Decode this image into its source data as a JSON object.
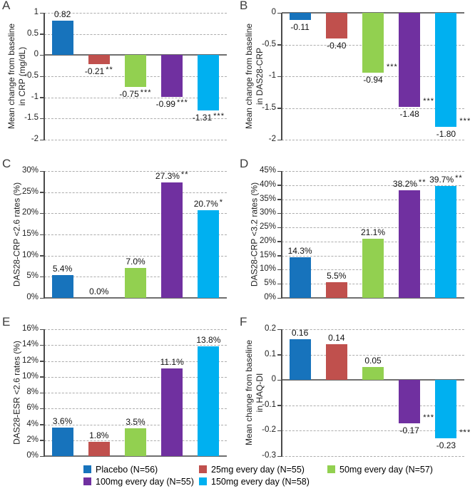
{
  "legend": {
    "items": [
      {
        "label": "Placebo (N=56)",
        "color": "#1773bc"
      },
      {
        "label": "25mg every day (N=55)",
        "color": "#c0504d"
      },
      {
        "label": "50mg every day (N=57)",
        "color": "#92d050"
      },
      {
        "label": "100mg every day (N=55)",
        "color": "#7030a0"
      },
      {
        "label": "150mg every day (N=58)",
        "color": "#00b0f0"
      }
    ],
    "rows": [
      [
        0,
        1,
        2
      ],
      [
        3,
        4
      ]
    ]
  },
  "style_colors": {
    "gridline": "#adadad",
    "axis": "#4a4a4a",
    "zero_line": "#6f6f6f",
    "background": "#ffffff"
  },
  "chart_data": [
    {
      "panel": "A",
      "type": "bar",
      "ylabel": "Mean change from baseline\nin CRP (mg/dL)",
      "ylim": [
        -2,
        1
      ],
      "ytick_values": [
        1,
        0.5,
        0,
        -0.5,
        -1,
        -1.5,
        -2
      ],
      "ytick_labels": [
        "1",
        "0.5",
        "0",
        "-0.5",
        "-1",
        "-1.5",
        "-2"
      ],
      "categories": [
        "Placebo (N=56)",
        "25mg every day (N=55)",
        "50mg every day (N=57)",
        "100mg every day (N=55)",
        "150mg every day (N=58)"
      ],
      "values": [
        0.82,
        -0.21,
        -0.75,
        -0.99,
        -1.31
      ],
      "bar_labels": [
        "0.82",
        "-0.21",
        "-0.75",
        "-0.99",
        "-1.31"
      ],
      "stars": [
        "",
        "**",
        "***",
        "***",
        "***"
      ],
      "star_style": "inline",
      "grid": true,
      "legend_position": "figure-bottom"
    },
    {
      "panel": "B",
      "type": "bar",
      "ylabel": "Mean change from baseline\nin DAS28-CRP",
      "ylim": [
        -2,
        0
      ],
      "ytick_values": [
        0,
        -0.5,
        -1,
        -1.5,
        -2
      ],
      "ytick_labels": [
        "0",
        "-0.5",
        "-1",
        "-1.5",
        "-2"
      ],
      "categories": [
        "Placebo (N=56)",
        "25mg every day (N=55)",
        "50mg every day (N=57)",
        "100mg every day (N=55)",
        "150mg every day (N=58)"
      ],
      "values": [
        -0.11,
        -0.4,
        -0.94,
        -1.48,
        -1.8
      ],
      "bar_labels": [
        "-0.11",
        "-0.40",
        "-0.94",
        "-1.48",
        "-1.80"
      ],
      "stars": [
        "",
        "",
        "***",
        "***",
        "***"
      ],
      "star_style": "beside",
      "grid": true,
      "legend_position": "figure-bottom"
    },
    {
      "panel": "C",
      "type": "bar",
      "ylabel": "DAS28-CRP <2.6 rates (%)",
      "ylim": [
        0,
        30
      ],
      "ytick_values": [
        30,
        25,
        20,
        15,
        10,
        5,
        0
      ],
      "ytick_labels": [
        "30%",
        "25%",
        "20%",
        "15%",
        "10%",
        "5%",
        "0%"
      ],
      "categories": [
        "Placebo (N=56)",
        "25mg every day (N=55)",
        "50mg every day (N=57)",
        "100mg every day (N=55)",
        "150mg every day (N=58)"
      ],
      "values": [
        5.4,
        0.0,
        7.0,
        27.3,
        20.7
      ],
      "bar_labels": [
        "5.4%",
        "0.0%",
        "7.0%",
        "27.3%",
        "20.7%"
      ],
      "stars": [
        "",
        "",
        "",
        "**",
        "*"
      ],
      "star_style": "inline",
      "grid": true,
      "legend_position": "figure-bottom"
    },
    {
      "panel": "D",
      "type": "bar",
      "ylabel": "DAS28-CRP <3.2 rates (%)",
      "ylim": [
        0,
        45
      ],
      "ytick_values": [
        45,
        40,
        35,
        30,
        25,
        20,
        15,
        10,
        5,
        0
      ],
      "ytick_labels": [
        "45%",
        "40%",
        "35%",
        "30%",
        "25%",
        "20%",
        "15%",
        "10%",
        "5%",
        "0%"
      ],
      "categories": [
        "Placebo (N=56)",
        "25mg every day (N=55)",
        "50mg every day (N=57)",
        "100mg every day (N=55)",
        "150mg every day (N=58)"
      ],
      "values": [
        14.3,
        5.5,
        21.1,
        38.2,
        39.7
      ],
      "bar_labels": [
        "14.3%",
        "5.5%",
        "21.1%",
        "38.2%",
        "39.7%"
      ],
      "stars": [
        "",
        "",
        "",
        "**",
        "**"
      ],
      "star_style": "inline",
      "grid": true,
      "legend_position": "figure-bottom"
    },
    {
      "panel": "E",
      "type": "bar",
      "ylabel": "DAS28-ESR <2.6 rates (%)",
      "ylim": [
        0,
        16
      ],
      "ytick_values": [
        16,
        14,
        12,
        10,
        8,
        6,
        4,
        2,
        0
      ],
      "ytick_labels": [
        "16%",
        "14%",
        "12%",
        "10%",
        "8%",
        "6%",
        "4%",
        "2%",
        "0%"
      ],
      "categories": [
        "Placebo (N=56)",
        "25mg every day (N=55)",
        "50mg every day (N=57)",
        "100mg every day (N=55)",
        "150mg every day (N=58)"
      ],
      "values": [
        3.6,
        1.8,
        3.5,
        11.1,
        13.8
      ],
      "bar_labels": [
        "3.6%",
        "1.8%",
        "3.5%",
        "11.1%",
        "13.8%"
      ],
      "stars": [
        "",
        "",
        "",
        "",
        ""
      ],
      "star_style": "inline",
      "grid": true,
      "legend_position": "figure-bottom"
    },
    {
      "panel": "F",
      "type": "bar",
      "ylabel": "Mean change from baseline\nin HAQ-DI",
      "ylim": [
        -0.3,
        0.2
      ],
      "ytick_values": [
        0.2,
        0.1,
        0,
        -0.1,
        -0.2,
        -0.3
      ],
      "ytick_labels": [
        "0.2",
        "0.1",
        "0",
        "-0.1",
        "-0.2",
        "-0.3"
      ],
      "categories": [
        "Placebo (N=56)",
        "25mg every day (N=55)",
        "50mg every day (N=57)",
        "100mg every day (N=55)",
        "150mg every day (N=58)"
      ],
      "values": [
        0.16,
        0.14,
        0.05,
        -0.17,
        -0.23
      ],
      "bar_labels": [
        "0.16",
        "0.14",
        "0.05",
        "-0.17",
        "-0.23"
      ],
      "stars": [
        "",
        "",
        "",
        "***",
        "***"
      ],
      "star_style": "beside",
      "grid": true,
      "legend_position": "figure-bottom"
    }
  ]
}
